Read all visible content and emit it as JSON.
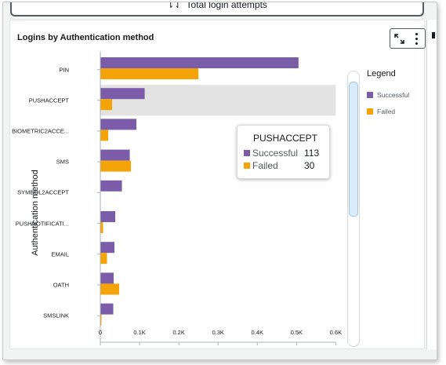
{
  "top_visual": {
    "title": "Total login attempts"
  },
  "card": {
    "title": "Logins by Authentication method"
  },
  "legend": {
    "title": "Legend"
  },
  "tooltip": {
    "title": "PUSHACCEPT",
    "rows": [
      {
        "label": "Successful",
        "value": "113"
      },
      {
        "label": "Failed",
        "value": "30"
      }
    ]
  },
  "colors": {
    "successful": "#7a5ca8",
    "failed": "#f4a409",
    "highlight": "#e3e3e3",
    "axis": "#aab7b8"
  },
  "chart_data": {
    "type": "bar",
    "orientation": "horizontal",
    "title": "Logins by Authentication method",
    "xlabel": "",
    "ylabel": "Authentication method",
    "categories": [
      "PIN",
      "PUSHACCEPT",
      "BIOMETRIC2ACCE...",
      "SMS",
      "SYMBOL2ACCEPT",
      "PUSHNOTIFICATI...",
      "EMAIL",
      "OATH",
      "SMSLINK"
    ],
    "series": [
      {
        "name": "Successful",
        "values": [
          505,
          113,
          92,
          75,
          55,
          38,
          36,
          34,
          33
        ]
      },
      {
        "name": "Failed",
        "values": [
          250,
          30,
          20,
          78,
          0,
          7,
          17,
          48,
          3
        ]
      }
    ],
    "xlim": [
      0,
      600
    ],
    "xticks": [
      0,
      100,
      200,
      300,
      400,
      500,
      600
    ],
    "xtick_labels": [
      "0",
      "0.1K",
      "0.2K",
      "0.3K",
      "0.4K",
      "0.5K",
      "0.6K"
    ],
    "highlighted_category": "PUSHACCEPT",
    "legend_position": "right",
    "grid": false
  }
}
